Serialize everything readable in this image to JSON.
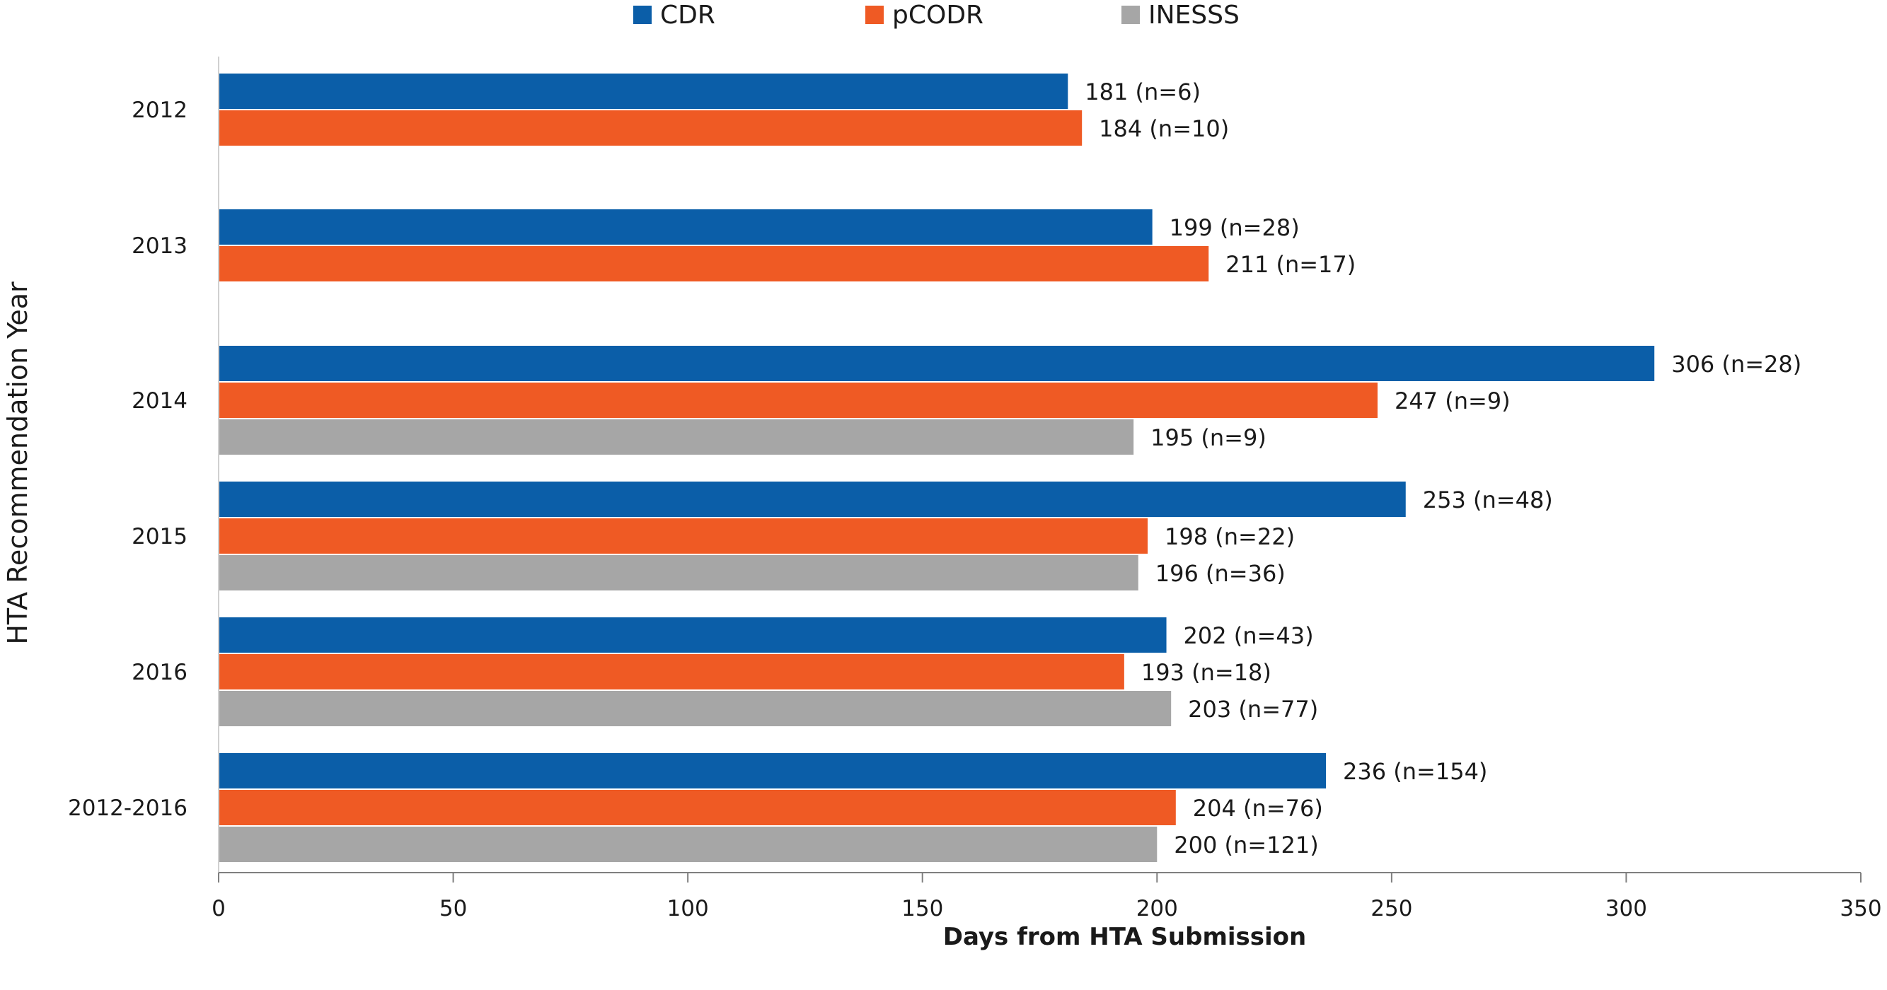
{
  "chart_data": {
    "type": "bar",
    "orientation": "horizontal",
    "title": "",
    "xlabel": "Days from HTA Submission",
    "ylabel": "HTA Recommendation Year",
    "xlim": [
      0,
      350
    ],
    "xticks": [
      0,
      50,
      100,
      150,
      200,
      250,
      300,
      350
    ],
    "grid": false,
    "legend_position": "top",
    "categories": [
      "2012",
      "2013",
      "2014",
      "2015",
      "2016",
      "2012-2016"
    ],
    "series": [
      {
        "name": "CDR",
        "color": "#0b5ea8",
        "values": [
          181,
          199,
          306,
          253,
          202,
          236
        ],
        "labels": [
          "181 (n=6)",
          "199 (n=28)",
          "306 (n=28)",
          "253 (n=48)",
          "202 (n=43)",
          "236 (n=154)"
        ]
      },
      {
        "name": "pCODR",
        "color": "#ef5a24",
        "values": [
          184,
          211,
          247,
          198,
          193,
          204
        ],
        "labels": [
          "184 (n=10)",
          "211 (n=17)",
          "247 (n=9)",
          "198 (n=22)",
          "193 (n=18)",
          "204 (n=76)"
        ]
      },
      {
        "name": "INESSS",
        "color": "#a6a6a6",
        "values": [
          null,
          null,
          195,
          196,
          203,
          200
        ],
        "labels": [
          null,
          null,
          "195 (n=9)",
          "196 (n=36)",
          "203 (n=77)",
          "200 (n=121)"
        ]
      }
    ]
  }
}
